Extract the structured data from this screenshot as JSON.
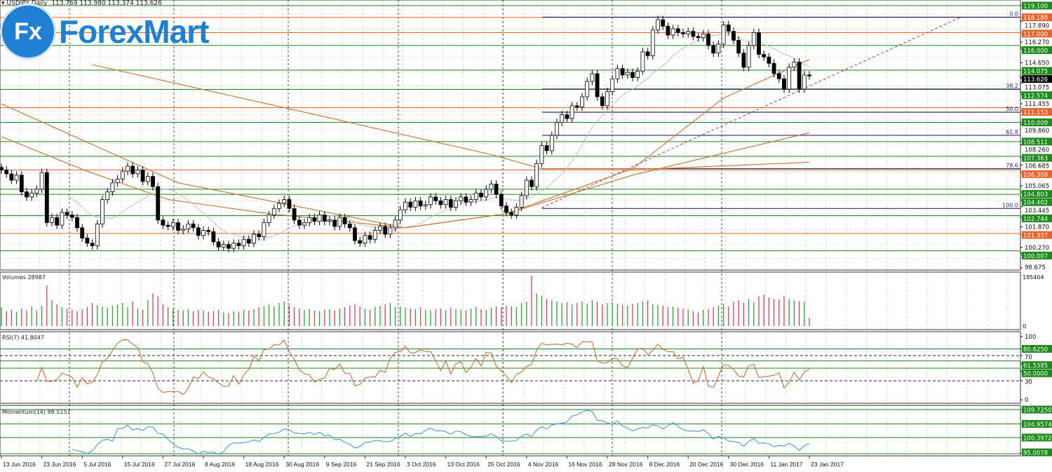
{
  "header": {
    "symbol": "USDJPY,Daily",
    "ohlc": "113.769 113.980 113.374 113.626"
  },
  "logo": {
    "mark": "Fx",
    "name": "ForexMart"
  },
  "colors": {
    "up": "#ffffff",
    "down": "#000000",
    "support": "#1a8a1a",
    "resistance": "#e8632a",
    "fib": "#2b2f6e",
    "ma_gray": "#b9c4b9",
    "ma_orange": "#c8702a",
    "rsi": "#c0652a",
    "momentum": "#3d8fd1",
    "vol_up": "#2fa02f",
    "vol_down": "#d0405a"
  },
  "chart_data": {
    "type": "candlestick",
    "symbol": "USDJPY",
    "timeframe": "Daily",
    "price_range": [
      98.675,
      119.46
    ],
    "price_ticks": [
      "98.675",
      "100.270",
      "101.870",
      "103.445",
      "105.065",
      "106.685",
      "108.260",
      "109.860",
      "111.455",
      "113.075",
      "114.650",
      "116.270",
      "117.890"
    ],
    "date_labels": [
      "13 Jun 2016",
      "23 Jun 2016",
      "5 Jul 2016",
      "15 Jul 2016",
      "27 Jul 2016",
      "8 Aug 2016",
      "18 Aug 2016",
      "30 Aug 2016",
      "9 Sep 2016",
      "21 Sep 2016",
      "3 Oct 2016",
      "13 Oct 2016",
      "25 Oct 2016",
      "4 Nov 2016",
      "16 Nov 2016",
      "28 Nov 2016",
      "8 Dec 2016",
      "20 Dec 2016",
      "30 Dec 2016",
      "11 Jan 2017",
      "23 Jan 2017"
    ],
    "closes": [
      106.3,
      106.0,
      105.5,
      105.9,
      104.6,
      104.2,
      104.5,
      104.8,
      106.1,
      102.2,
      102.6,
      102.0,
      103.0,
      102.8,
      102.6,
      101.8,
      101.0,
      100.6,
      100.4,
      102.1,
      104.0,
      104.6,
      105.3,
      105.6,
      106.2,
      106.6,
      106.0,
      106.3,
      105.4,
      105.8,
      105.0,
      102.4,
      102.0,
      101.9,
      102.2,
      101.6,
      101.7,
      102.1,
      101.8,
      101.2,
      101.6,
      101.5,
      100.7,
      100.3,
      100.5,
      100.2,
      100.6,
      100.4,
      100.9,
      100.6,
      101.3,
      101.1,
      102.2,
      102.8,
      103.3,
      103.7,
      104.0,
      103.3,
      102.4,
      102.0,
      102.2,
      102.6,
      102.3,
      102.8,
      102.3,
      102.4,
      101.9,
      102.6,
      102.1,
      101.8,
      100.8,
      100.6,
      101.2,
      100.9,
      101.6,
      101.9,
      101.3,
      101.8,
      102.4,
      103.2,
      103.8,
      103.4,
      103.9,
      103.5,
      103.6,
      104.2,
      103.9,
      103.6,
      104.0,
      103.4,
      103.9,
      104.2,
      103.8,
      104.0,
      104.5,
      104.2,
      104.8,
      105.2,
      104.4,
      103.5,
      103.0,
      102.8,
      103.4,
      104.3,
      105.5,
      105.0,
      106.8,
      108.2,
      107.8,
      109.0,
      110.0,
      110.6,
      110.3,
      111.3,
      111.2,
      112.0,
      113.2,
      113.8,
      112.0,
      111.3,
      112.4,
      113.4,
      114.2,
      113.7,
      113.9,
      113.5,
      114.0,
      115.5,
      115.2,
      117.2,
      118.0,
      117.5,
      116.8,
      117.3,
      117.0,
      116.9,
      117.1,
      116.7,
      116.6,
      116.9,
      116.0,
      115.4,
      116.1,
      117.6,
      117.1,
      116.4,
      115.4,
      114.3,
      116.0,
      117.0,
      115.3,
      115.1,
      114.6,
      113.8,
      113.4,
      112.6,
      114.3,
      114.7,
      112.6,
      113.7,
      113.626
    ],
    "moving_averages": [
      {
        "color": "ma_orange",
        "points": [
          [
            18,
            114.5
          ],
          [
            60,
            110.8
          ],
          [
            97,
            107.5
          ],
          [
            107,
            106.4
          ],
          [
            130,
            106.4
          ],
          [
            160,
            106.9
          ]
        ]
      },
      {
        "color": "ma_orange",
        "points": [
          [
            0,
            111.45
          ],
          [
            35,
            105.3
          ],
          [
            80,
            101.8
          ],
          [
            100,
            102.9
          ],
          [
            125,
            105.9
          ],
          [
            160,
            109.2
          ]
        ]
      },
      {
        "color": "ma_orange",
        "points": [
          [
            0,
            108.9
          ],
          [
            17,
            106.2
          ],
          [
            33,
            104.0
          ],
          [
            53,
            102.9
          ],
          [
            80,
            101.8
          ],
          [
            100,
            102.9
          ],
          [
            125,
            106.4
          ],
          [
            143,
            111.9
          ],
          [
            160,
            114.9
          ]
        ]
      }
    ],
    "levels": [
      {
        "price": 119.1,
        "label": "119.100",
        "kind": "support"
      },
      {
        "price": 118.188,
        "label": "118.188",
        "kind": "resistance"
      },
      {
        "price": 117.0,
        "label": "117.000",
        "kind": "resistance"
      },
      {
        "price": 116.0,
        "label": "116.000",
        "kind": "support"
      },
      {
        "price": 114.075,
        "label": "114.075",
        "kind": "support"
      },
      {
        "price": 112.574,
        "label": "112.574",
        "kind": "support"
      },
      {
        "price": 111.153,
        "label": "111.153",
        "kind": "resistance"
      },
      {
        "price": 110.009,
        "label": "110.009",
        "kind": "support"
      },
      {
        "price": 108.511,
        "label": "108.511",
        "kind": "support"
      },
      {
        "price": 107.363,
        "label": "107.363",
        "kind": "support"
      },
      {
        "price": 106.308,
        "label": "106.308",
        "kind": "resistance"
      },
      {
        "price": 104.803,
        "label": "104.803",
        "kind": "support"
      },
      {
        "price": 104.402,
        "label": "104.402",
        "kind": "support"
      },
      {
        "price": 102.744,
        "label": "102.744",
        "kind": "support"
      },
      {
        "price": 101.357,
        "label": "101.357",
        "kind": "resistance"
      },
      {
        "price": 100.007,
        "label": "100.007",
        "kind": "support"
      }
    ],
    "current_price": "113.626",
    "fibonacci": [
      {
        "label": "0.0",
        "price": 118.2
      },
      {
        "label": "38.2",
        "price": 112.6
      },
      {
        "label": "50.0",
        "price": 110.8
      },
      {
        "label": "61.8",
        "price": 109.0
      },
      {
        "label": "78.6",
        "price": 106.4
      },
      {
        "label": "100.0",
        "price": 103.3
      }
    ],
    "trendline": [
      [
        107,
        103.35
      ],
      [
        190,
        118.2
      ]
    ],
    "volumes": {
      "title": "Volumes 28987",
      "max_label": "185404",
      "zero_label": "0",
      "max": 185404,
      "values": [
        70,
        55,
        60,
        52,
        65,
        58,
        72,
        60,
        75,
        150,
        95,
        80,
        70,
        65,
        60,
        55,
        62,
        70,
        85,
        78,
        72,
        68,
        75,
        80,
        85,
        70,
        90,
        65,
        60,
        95,
        120,
        110,
        80,
        70,
        65,
        60,
        58,
        62,
        55,
        60,
        58,
        52,
        55,
        60,
        50,
        48,
        55,
        52,
        60,
        58,
        62,
        70,
        75,
        80,
        72,
        85,
        90,
        78,
        70,
        65,
        60,
        62,
        58,
        55,
        60,
        62,
        58,
        65,
        70,
        75,
        80,
        72,
        65,
        60,
        70,
        75,
        80,
        85,
        70,
        72,
        68,
        65,
        62,
        70,
        60,
        58,
        62,
        65,
        60,
        68,
        62,
        60,
        58,
        65,
        70,
        62,
        60,
        68,
        72,
        70,
        75,
        72,
        70,
        85,
        90,
        185,
        120,
        110,
        100,
        95,
        90,
        85,
        88,
        80,
        85,
        90,
        82,
        95,
        90,
        80,
        85,
        88,
        82,
        78,
        75,
        80,
        85,
        90,
        95,
        80,
        78,
        75,
        70,
        72,
        68,
        65,
        60,
        55,
        50,
        60,
        62,
        70,
        75,
        80,
        72,
        90,
        95,
        85,
        100,
        88,
        110,
        115,
        105,
        100,
        98,
        110,
        100,
        95,
        92,
        90,
        30
      ],
      "unit": "thousands"
    },
    "rsi": {
      "title": "RSI(7) 41.8047",
      "period": 7,
      "ticks": [
        "100",
        "70",
        "30",
        "0"
      ],
      "levels": [
        {
          "value": 80.625,
          "label": "80.6250"
        },
        {
          "value": 61.5385,
          "label": "61.5385"
        },
        {
          "value": 50.0,
          "label": "50.0000"
        }
      ]
    },
    "momentum": {
      "title": "Momentum(14) 98.5157",
      "period": 14,
      "range": [
        94.5,
        110.5
      ],
      "levels": [
        {
          "value": 109.725,
          "label": "109.7250"
        },
        {
          "value": 104.9574,
          "label": "104.9574"
        },
        {
          "value": 100.3972,
          "label": "100.3972"
        },
        {
          "value": 95.0078,
          "label": "95.0078"
        }
      ]
    }
  }
}
